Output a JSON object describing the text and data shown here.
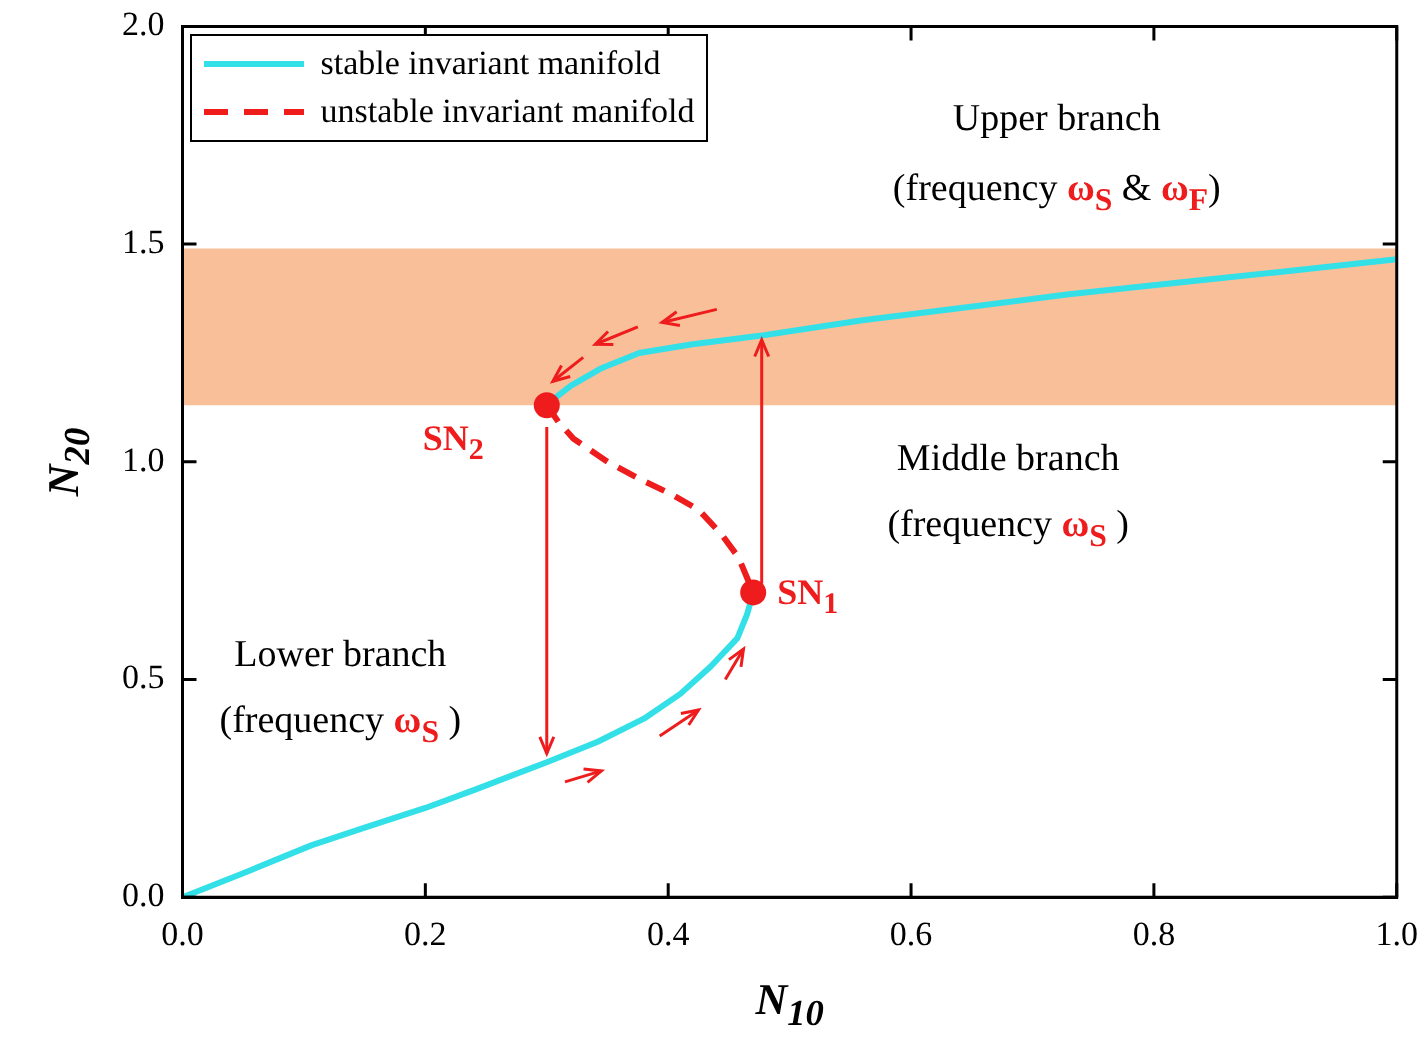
{
  "chart_data": {
    "type": "line",
    "xlabel": "N$_{10}$",
    "ylabel": "N$_{20}$",
    "xlim": [
      0,
      1
    ],
    "ylim": [
      0,
      2
    ],
    "xticks": [
      {
        "value": 0,
        "label": "0.0"
      },
      {
        "value": 0.2,
        "label": "0.2"
      },
      {
        "value": 0.4,
        "label": "0.4"
      },
      {
        "value": 0.6,
        "label": "0.6"
      },
      {
        "value": 0.8,
        "label": "0.8"
      },
      {
        "value": 1,
        "label": "1.0"
      }
    ],
    "yticks": [
      {
        "value": 0,
        "label": "0.0"
      },
      {
        "value": 0.5,
        "label": "0.5"
      },
      {
        "value": 1,
        "label": "1.0"
      },
      {
        "value": 1.5,
        "label": "1.5"
      },
      {
        "value": 2,
        "label": "2.0"
      }
    ],
    "grid": false,
    "legend": "top left",
    "series": [
      {
        "name": "stable invariant manifold",
        "color": "#33e0e8",
        "line_style": "solid",
        "x": [
          0,
          0.05,
          0.106,
          0.15,
          0.2,
          0.241,
          0.3,
          0.342,
          0.38,
          0.41,
          0.435,
          0.457,
          0.465,
          0.47,
          null,
          0.3,
          0.305,
          0.32,
          0.345,
          0.376,
          0.42,
          0.477,
          0.56,
          0.646,
          0.73,
          0.815,
          0.9,
          1.0
        ],
        "values": [
          0,
          0.055,
          0.119,
          0.16,
          0.205,
          0.247,
          0.31,
          0.357,
          0.41,
          0.467,
          0.53,
          0.595,
          0.65,
          0.7,
          null,
          1.13,
          1.143,
          1.175,
          1.215,
          1.25,
          1.27,
          1.29,
          1.325,
          1.355,
          1.385,
          1.41,
          1.435,
          1.465
        ]
      },
      {
        "name": "unstable invariant manifold",
        "color": "#ee1c1c",
        "line_style": "dashed",
        "x": [
          0.3,
          0.31,
          0.322,
          0.35,
          0.376,
          0.403,
          0.425,
          0.444,
          0.458,
          0.47
        ],
        "values": [
          1.13,
          1.09,
          1.053,
          1.0,
          0.961,
          0.925,
          0.89,
          0.833,
          0.78,
          0.7
        ]
      },
      {
        "type": "scatter",
        "color": "#ee1c1c",
        "marker": "circle",
        "x": [
          0.3,
          0.47
        ],
        "values": [
          1.13,
          0.7
        ]
      }
    ],
    "bands": [
      {
        "axis": "y",
        "from": 1.13,
        "to": 1.49,
        "color": "#f9bf99"
      }
    ],
    "annotations": [
      "Upper branch",
      "(frequency ω$_{S}$ & ω$_{F}$)",
      "Middle branch",
      "(frequency ω$_{S}$ )",
      "Lower branch",
      "(frequency ω$_{S}$ )",
      {
        "text": "SN$_{2}$",
        "x": 0.3,
        "y": 1.13
      },
      {
        "text": "SN$_{1}$",
        "x": 0.47,
        "y": 0.7
      }
    ]
  }
}
